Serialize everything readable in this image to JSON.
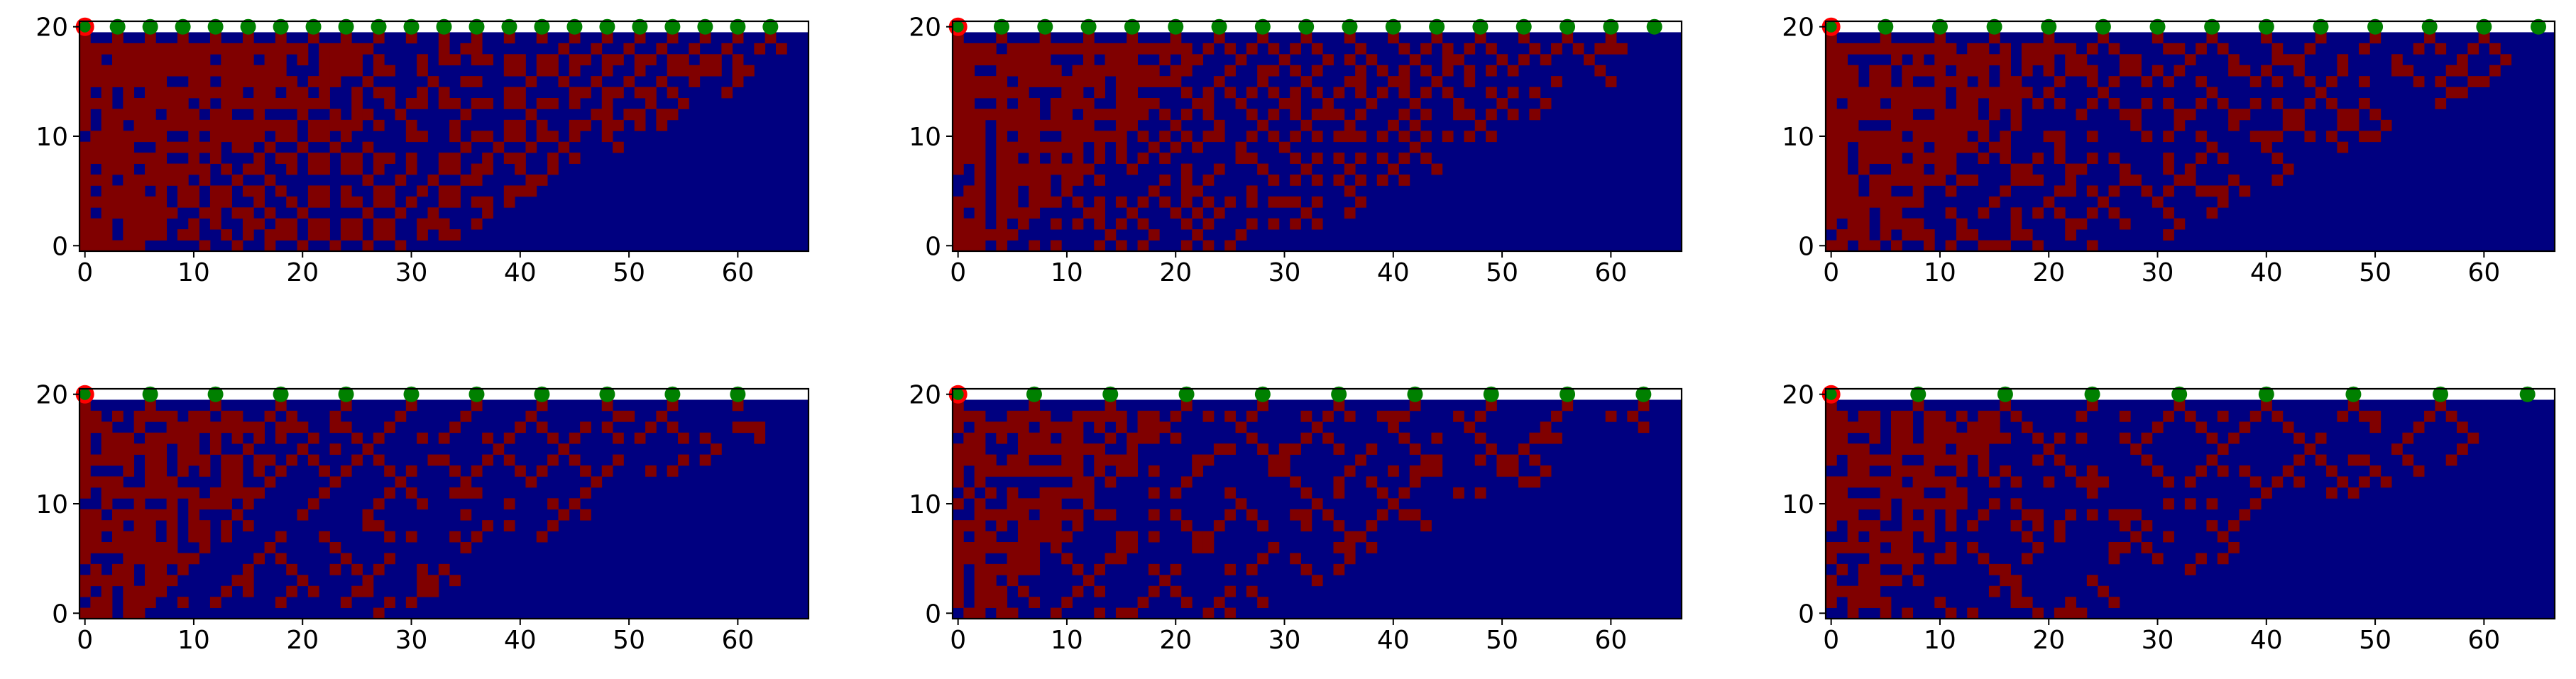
{
  "figure": {
    "background": "#ffffff"
  },
  "chart_data": [
    {
      "type": "heatmap",
      "panel": 1,
      "marker_spacing": 3,
      "xlim": [
        0,
        67
      ],
      "ylim": [
        0,
        21
      ],
      "xticks": [
        0,
        10,
        20,
        30,
        40,
        50,
        60
      ],
      "yticks": [
        0,
        10,
        20
      ],
      "rows": 20,
      "cols": 67,
      "seed": 11
    },
    {
      "type": "heatmap",
      "panel": 2,
      "marker_spacing": 4,
      "xlim": [
        0,
        67
      ],
      "ylim": [
        0,
        21
      ],
      "xticks": [
        0,
        10,
        20,
        30,
        40,
        50,
        60
      ],
      "yticks": [
        0,
        10,
        20
      ],
      "rows": 20,
      "cols": 67,
      "seed": 23
    },
    {
      "type": "heatmap",
      "panel": 3,
      "marker_spacing": 5,
      "xlim": [
        0,
        67
      ],
      "ylim": [
        0,
        21
      ],
      "xticks": [
        0,
        10,
        20,
        30,
        40,
        50,
        60
      ],
      "yticks": [
        0,
        10,
        20
      ],
      "rows": 20,
      "cols": 67,
      "seed": 37
    },
    {
      "type": "heatmap",
      "panel": 4,
      "marker_spacing": 6,
      "xlim": [
        0,
        67
      ],
      "ylim": [
        0,
        21
      ],
      "xticks": [
        0,
        10,
        20,
        30,
        40,
        50,
        60
      ],
      "yticks": [
        0,
        10,
        20
      ],
      "rows": 20,
      "cols": 67,
      "seed": 41
    },
    {
      "type": "heatmap",
      "panel": 5,
      "marker_spacing": 7,
      "xlim": [
        0,
        67
      ],
      "ylim": [
        0,
        21
      ],
      "xticks": [
        0,
        10,
        20,
        30,
        40,
        50,
        60
      ],
      "yticks": [
        0,
        10,
        20
      ],
      "rows": 20,
      "cols": 67,
      "seed": 53
    },
    {
      "type": "heatmap",
      "panel": 6,
      "marker_spacing": 8,
      "xlim": [
        0,
        67
      ],
      "ylim": [
        0,
        21
      ],
      "xticks": [
        0,
        10,
        20,
        30,
        40,
        50,
        60
      ],
      "yticks": [
        0,
        10,
        20
      ],
      "rows": 20,
      "cols": 67,
      "seed": 67
    }
  ],
  "colors": {
    "active": "#800000",
    "inactive": "#000080",
    "marker_green": "#008000",
    "marker_red": "#ff0000",
    "axis": "#000000"
  }
}
